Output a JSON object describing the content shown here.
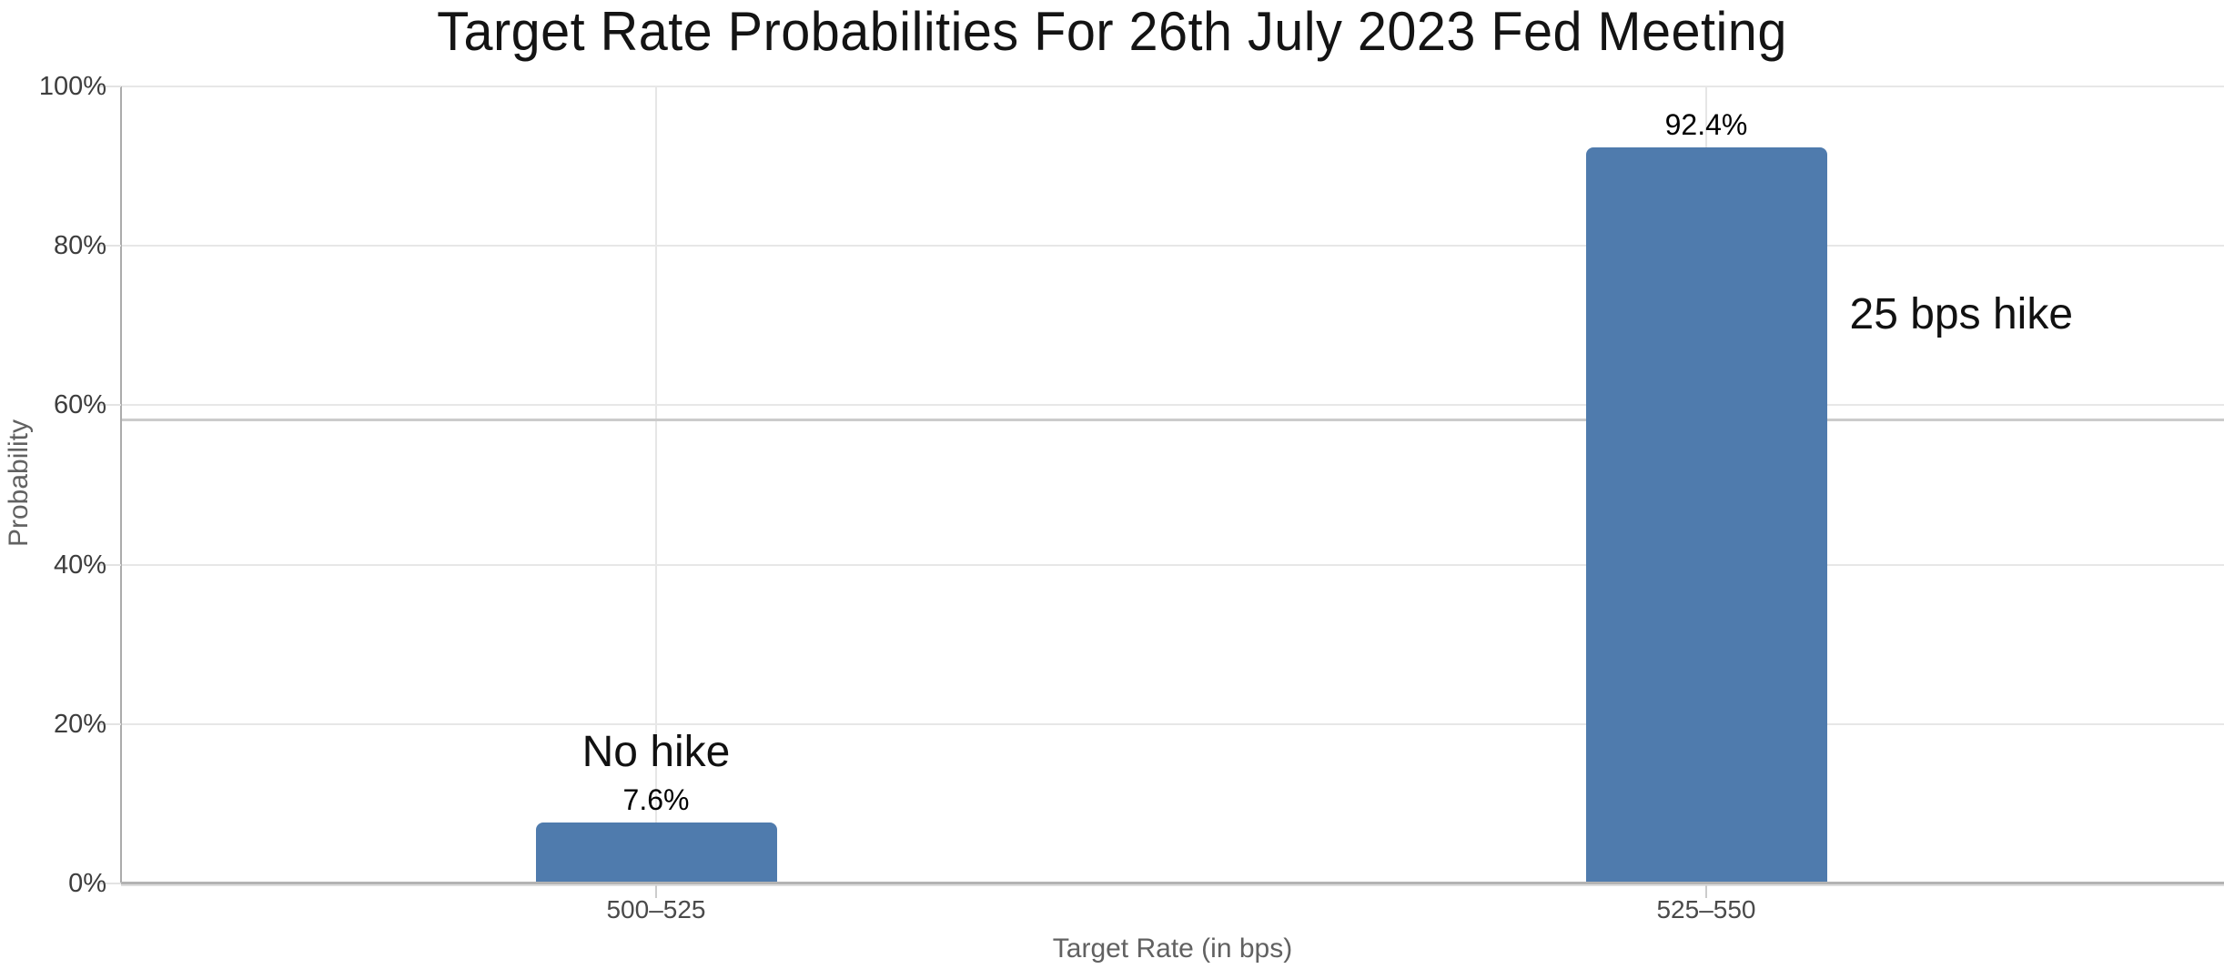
{
  "chart_data": {
    "type": "bar",
    "title": "Target Rate Probabilities For 26th July 2023 Fed Meeting",
    "xlabel": "Target Rate (in bps)",
    "ylabel": "Probability",
    "categories": [
      "500–525",
      "525–550"
    ],
    "values": [
      7.6,
      92.4
    ],
    "value_labels": [
      "7.6%",
      "92.4%"
    ],
    "bar_annotations": [
      {
        "text": "No hike",
        "category_index": 0,
        "position": "above"
      },
      {
        "text": "25 bps hike",
        "category_index": 1,
        "position": "right"
      }
    ],
    "yticks": [
      0,
      20,
      40,
      60,
      80,
      100
    ],
    "ytick_labels": [
      "0%",
      "20%",
      "40%",
      "60%",
      "80%",
      "100%"
    ],
    "ylim": [
      0,
      100
    ],
    "grid": true,
    "legend_position": "none",
    "colors": {
      "bar": "#4f7bad",
      "gridline": "#e7e7e7",
      "axis": "#b3b3b3"
    }
  }
}
